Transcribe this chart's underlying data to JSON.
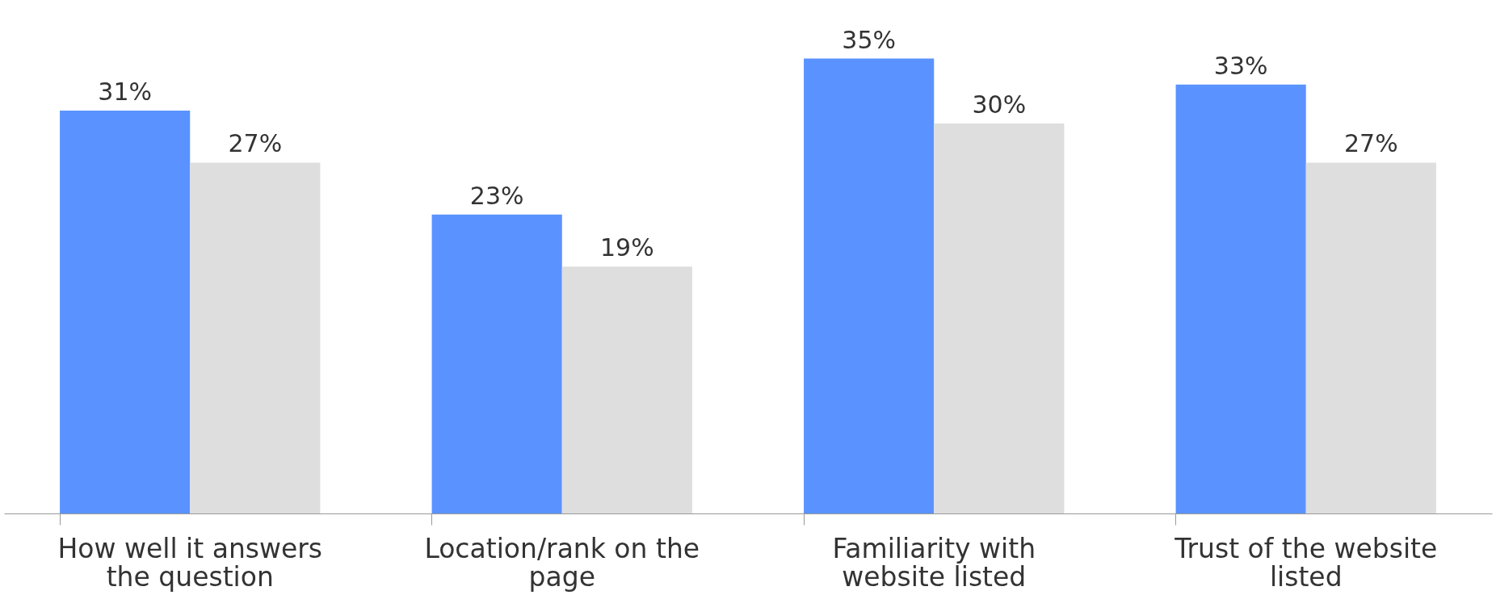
{
  "chart_data": {
    "type": "bar",
    "categories": [
      "How well it answers the question",
      "Location/rank on the page",
      "Familiarity with website listed",
      "Trust of the website listed"
    ],
    "series": [
      {
        "color": "#5a93ff",
        "values": [
          31,
          23,
          35,
          33
        ],
        "value_labels": [
          "31%",
          "23%",
          "35%",
          "33%"
        ]
      },
      {
        "color": "#dededf",
        "values": [
          27,
          19,
          30,
          27
        ],
        "value_labels": [
          "27%",
          "19%",
          "30%",
          "27%"
        ]
      }
    ],
    "grid": false,
    "legend": false
  }
}
